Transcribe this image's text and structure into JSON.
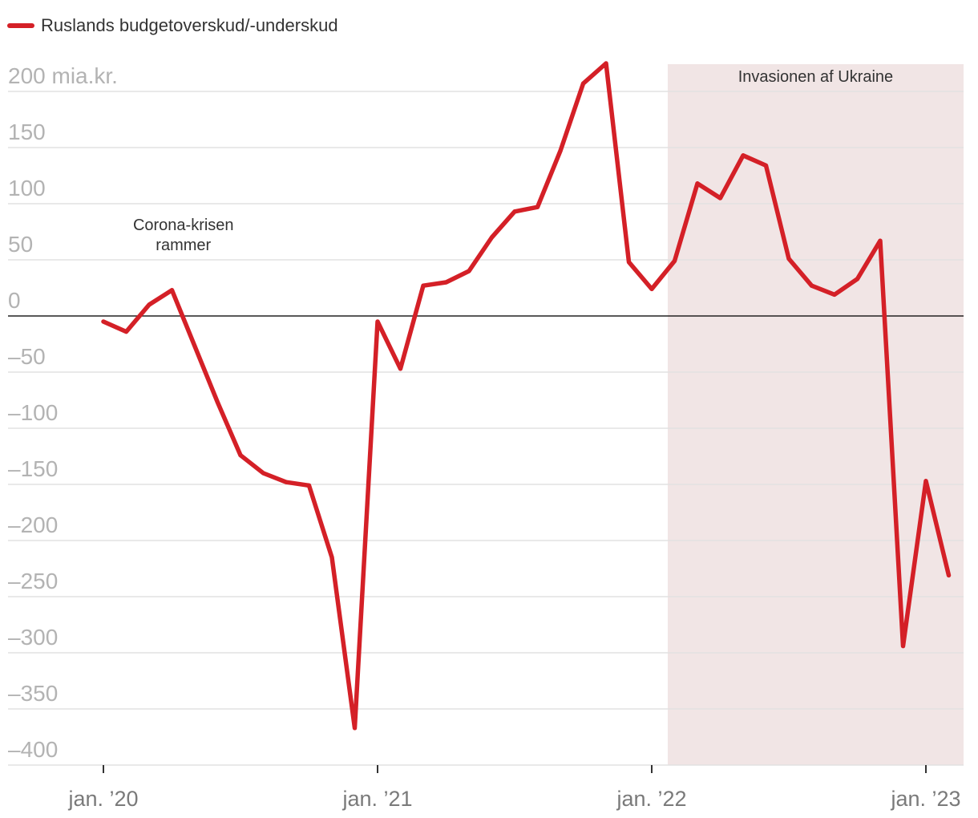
{
  "chart_data": {
    "type": "line",
    "title": "",
    "xlabel": "",
    "ylabel": "",
    "ylim": [
      -400,
      200
    ],
    "y_unit_label": "mia.kr.",
    "yticks": [
      200,
      150,
      100,
      50,
      0,
      -50,
      -100,
      -150,
      -200,
      -250,
      -300,
      -350,
      -400
    ],
    "ytick_labels": [
      "200 mia.kr.",
      "150",
      "100",
      "50",
      "0",
      "-50",
      "-100",
      "-150",
      "-200",
      "-250",
      "-300",
      "-350",
      "-400"
    ],
    "x_start": "2020-01",
    "x_ticks": [
      {
        "month_index": 0,
        "label": "jan. ’20"
      },
      {
        "month_index": 12,
        "label": "jan. ’21"
      },
      {
        "month_index": 24,
        "label": "jan. ’22"
      },
      {
        "month_index": 36,
        "label": "jan. ’23"
      }
    ],
    "series": [
      {
        "name": "Ruslands budgetoverskud/-underskud",
        "color": "#d42027",
        "values": [
          -5,
          -14,
          10,
          23,
          -27,
          -77,
          -124,
          -140,
          -148,
          -151,
          -215,
          -367,
          -5,
          -47,
          27,
          30,
          40,
          70,
          93,
          97,
          147,
          207,
          225,
          48,
          24,
          49,
          118,
          105,
          143,
          134,
          51,
          27,
          19,
          33,
          67,
          -294,
          -147,
          -231
        ]
      }
    ],
    "shaded_region": {
      "label": "Invasionen af Ukraine",
      "start_month_index": 24.7,
      "end_month_index": 37.7,
      "color": "#f1e5e5"
    },
    "annotations": [
      {
        "text_lines": [
          "Corona-krisen",
          "rammer"
        ],
        "month_index": 3.5,
        "value": 68
      }
    ],
    "legend": "top-left",
    "grid": true
  }
}
